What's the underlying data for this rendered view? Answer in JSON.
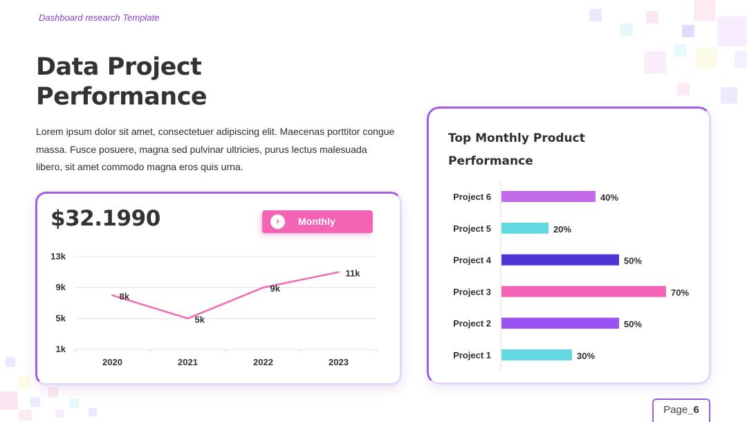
{
  "header": {
    "subtitle": "Dashboard research Template",
    "title_line1": "Data Project",
    "title_line2": "Performance",
    "description": "Lorem ipsum dolor sit amet, consectetuer adipiscing elit. Maecenas porttitor congue massa. Fusce posuere, magna sed pulvinar ultricies, purus lectus malesuada libero, sit amet commodo magna eros quis urna."
  },
  "left_card": {
    "value": "$32.1990",
    "button_label": "Monthly",
    "button_icon": "chevron-right-icon"
  },
  "right_card": {
    "title_line1": "Top Monthly Product",
    "title_line2": "Performance"
  },
  "footer": {
    "page_prefix": "Page",
    "page_number": "_6"
  },
  "colors": {
    "accent_purple": "#9b59e0",
    "accent_pink": "#f364b4"
  },
  "chart_data": [
    {
      "type": "line",
      "categories": [
        "2020",
        "2021",
        "2022",
        "2023"
      ],
      "values": [
        8,
        5,
        9,
        11
      ],
      "data_labels": [
        "8k",
        "5k",
        "9k",
        "11k"
      ],
      "y_ticks": [
        1,
        5,
        9,
        13
      ],
      "y_tick_labels": [
        "1k",
        "5k",
        "9k",
        "13k"
      ],
      "ylim": [
        1,
        13
      ],
      "grid": true,
      "line_color": "#f06bb4"
    },
    {
      "type": "bar",
      "orientation": "horizontal",
      "categories": [
        "Project 6",
        "Project 5",
        "Project 4",
        "Project 3",
        "Project 2",
        "Project 1"
      ],
      "values": [
        40,
        20,
        50,
        70,
        50,
        30
      ],
      "value_labels": [
        "40%",
        "20%",
        "50%",
        "70%",
        "50%",
        "30%"
      ],
      "colors": [
        "#c26ae8",
        "#63d8e0",
        "#4e33d6",
        "#f364b4",
        "#9a52f2",
        "#63d8e0"
      ],
      "xlim": [
        0,
        70
      ]
    }
  ]
}
